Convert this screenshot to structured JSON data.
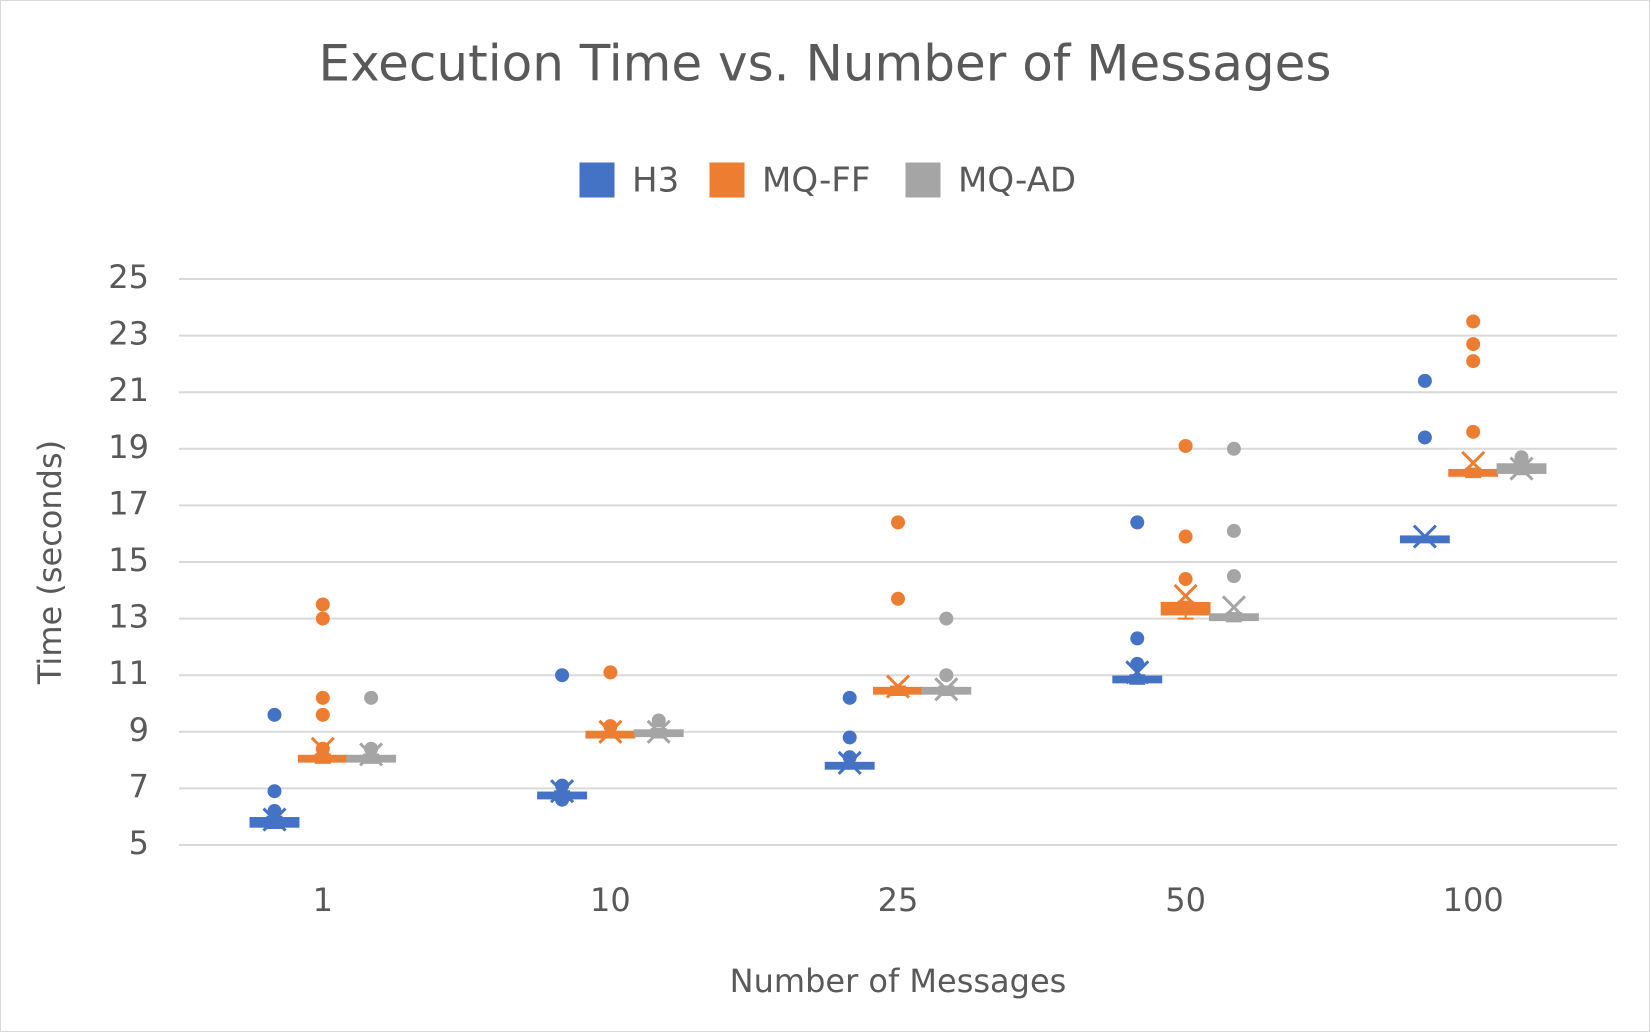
{
  "chart_data": {
    "type": "box",
    "title": "Execution Time vs. Number of Messages",
    "x_label": "Number of Messages",
    "y_label": "Time (seconds)",
    "categories": [
      "1",
      "10",
      "25",
      "50",
      "100"
    ],
    "ylim": [
      5,
      25
    ],
    "yticks": [
      5,
      7,
      9,
      11,
      13,
      15,
      17,
      19,
      21,
      23,
      25
    ],
    "grid": true,
    "legend": "top",
    "series": [
      {
        "name": "H3",
        "color": "#4472c4",
        "boxes": [
          {
            "min": 5.6,
            "q1": 5.7,
            "median": 5.8,
            "q3": 5.9,
            "max": 6.0,
            "mean": 5.9,
            "outliers": [
              6.2,
              6.9,
              9.6
            ]
          },
          {
            "min": 6.6,
            "q1": 6.7,
            "median": 6.75,
            "q3": 6.8,
            "max": 6.9,
            "mean": 6.9,
            "outliers": [
              6.6,
              7.1,
              11.0
            ]
          },
          {
            "min": 7.7,
            "q1": 7.75,
            "median": 7.8,
            "q3": 7.85,
            "max": 7.9,
            "mean": 7.9,
            "outliers": [
              8.1,
              8.8,
              10.2
            ]
          },
          {
            "min": 10.7,
            "q1": 10.8,
            "median": 10.85,
            "q3": 10.9,
            "max": 11.0,
            "mean": 11.1,
            "outliers": [
              11.4,
              12.3,
              16.4
            ]
          },
          {
            "min": 15.7,
            "q1": 15.75,
            "median": 15.8,
            "q3": 15.85,
            "max": 15.9,
            "mean": 15.9,
            "outliers": [
              19.4,
              21.4
            ]
          }
        ]
      },
      {
        "name": "MQ-FF",
        "color": "#ed7d31",
        "boxes": [
          {
            "min": 7.9,
            "q1": 8.0,
            "median": 8.05,
            "q3": 8.1,
            "max": 8.2,
            "mean": 8.4,
            "outliers": [
              8.4,
              9.6,
              10.2,
              13.0,
              13.5
            ]
          },
          {
            "min": 8.8,
            "q1": 8.85,
            "median": 8.9,
            "q3": 8.95,
            "max": 9.0,
            "mean": 9.0,
            "outliers": [
              9.2,
              11.1
            ]
          },
          {
            "min": 10.3,
            "q1": 10.4,
            "median": 10.45,
            "q3": 10.5,
            "max": 10.6,
            "mean": 10.6,
            "outliers": [
              13.7,
              16.4
            ]
          },
          {
            "min": 13.0,
            "q1": 13.2,
            "median": 13.3,
            "q3": 13.5,
            "max": 13.6,
            "mean": 13.8,
            "outliers": [
              14.4,
              15.9,
              19.1
            ]
          },
          {
            "min": 18.0,
            "q1": 18.1,
            "median": 18.15,
            "q3": 18.2,
            "max": 18.3,
            "mean": 18.5,
            "outliers": [
              19.6,
              22.1,
              22.7,
              23.5
            ]
          }
        ]
      },
      {
        "name": "MQ-AD",
        "color": "#a5a5a5",
        "boxes": [
          {
            "min": 7.9,
            "q1": 8.0,
            "median": 8.05,
            "q3": 8.1,
            "max": 8.2,
            "mean": 8.2,
            "outliers": [
              8.4,
              10.2
            ]
          },
          {
            "min": 8.8,
            "q1": 8.9,
            "median": 8.95,
            "q3": 9.0,
            "max": 9.1,
            "mean": 9.0,
            "outliers": [
              9.4
            ]
          },
          {
            "min": 10.3,
            "q1": 10.4,
            "median": 10.45,
            "q3": 10.5,
            "max": 10.6,
            "mean": 10.5,
            "outliers": [
              11.0,
              13.0
            ]
          },
          {
            "min": 12.9,
            "q1": 13.0,
            "median": 13.05,
            "q3": 13.1,
            "max": 13.2,
            "mean": 13.4,
            "outliers": [
              14.5,
              16.1,
              19.0
            ]
          },
          {
            "min": 18.1,
            "q1": 18.2,
            "median": 18.3,
            "q3": 18.4,
            "max": 18.5,
            "mean": 18.3,
            "outliers": [
              18.7
            ]
          }
        ]
      }
    ]
  }
}
